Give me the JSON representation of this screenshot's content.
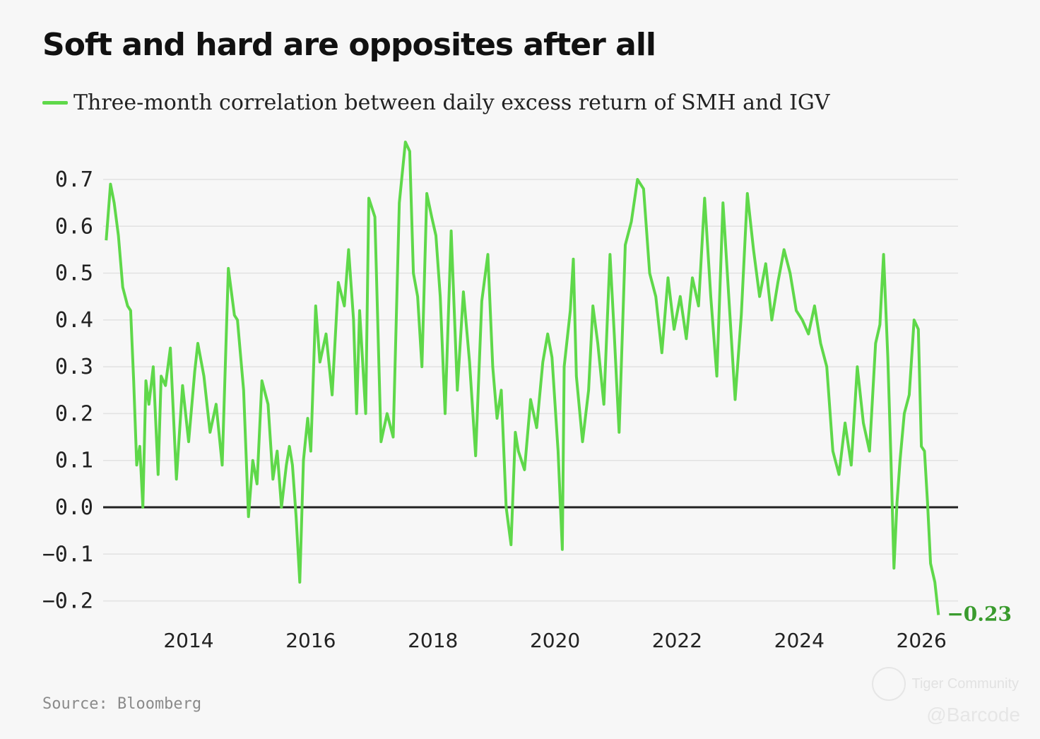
{
  "chart_data": {
    "type": "line",
    "title": "Soft and hard are opposites after all",
    "legend_label": "Three-month correlation between daily excess return of SMH and IGV",
    "series_color": "#5fd84a",
    "zero_line_color": "#222222",
    "xlim": [
      2012.6,
      2026.6
    ],
    "ylim": [
      -0.25,
      0.8
    ],
    "y_ticks": [
      0.7,
      0.6,
      0.5,
      0.4,
      0.3,
      0.2,
      0.1,
      0.0,
      -0.1,
      -0.2
    ],
    "y_tick_labels": [
      "0.7",
      "0.6",
      "0.5",
      "0.4",
      "0.3",
      "0.2",
      "0.1",
      "0.0",
      "−0.1",
      "−0.2"
    ],
    "x_ticks": [
      2014,
      2016,
      2018,
      2020,
      2022,
      2024,
      2026
    ],
    "x_tick_labels": [
      "2014",
      "2016",
      "2018",
      "2020",
      "2022",
      "2024",
      "2026"
    ],
    "end_label": "−0.23",
    "series": [
      {
        "name": "Three-month correlation between daily excess return of SMH and IGV",
        "x": [
          2012.65,
          2012.72,
          2012.78,
          2012.85,
          2012.92,
          2013.0,
          2013.05,
          2013.1,
          2013.15,
          2013.2,
          2013.25,
          2013.3,
          2013.35,
          2013.42,
          2013.5,
          2013.55,
          2013.62,
          2013.7,
          2013.8,
          2013.9,
          2014.0,
          2014.1,
          2014.15,
          2014.25,
          2014.35,
          2014.45,
          2014.55,
          2014.65,
          2014.75,
          2014.8,
          2014.9,
          2014.98,
          2015.05,
          2015.12,
          2015.2,
          2015.3,
          2015.38,
          2015.45,
          2015.52,
          2015.6,
          2015.65,
          2015.7,
          2015.76,
          2015.82,
          2015.88,
          2015.95,
          2016.0,
          2016.08,
          2016.15,
          2016.25,
          2016.35,
          2016.45,
          2016.55,
          2016.62,
          2016.7,
          2016.75,
          2016.8,
          2016.9,
          2016.95,
          2017.05,
          2017.15,
          2017.25,
          2017.35,
          2017.45,
          2017.55,
          2017.62,
          2017.68,
          2017.75,
          2017.82,
          2017.9,
          2017.98,
          2018.05,
          2018.12,
          2018.2,
          2018.3,
          2018.4,
          2018.5,
          2018.6,
          2018.7,
          2018.8,
          2018.9,
          2018.98,
          2019.05,
          2019.12,
          2019.2,
          2019.28,
          2019.35,
          2019.4,
          2019.5,
          2019.6,
          2019.7,
          2019.8,
          2019.88,
          2019.95,
          2020.05,
          2020.12,
          2020.15,
          2020.25,
          2020.3,
          2020.35,
          2020.45,
          2020.55,
          2020.62,
          2020.7,
          2020.8,
          2020.9,
          2020.97,
          2021.05,
          2021.15,
          2021.25,
          2021.35,
          2021.45,
          2021.55,
          2021.65,
          2021.75,
          2021.85,
          2021.95,
          2022.05,
          2022.15,
          2022.25,
          2022.35,
          2022.45,
          2022.55,
          2022.65,
          2022.75,
          2022.85,
          2022.95,
          2023.05,
          2023.15,
          2023.25,
          2023.35,
          2023.45,
          2023.55,
          2023.65,
          2023.75,
          2023.85,
          2023.95,
          2024.05,
          2024.15,
          2024.25,
          2024.35,
          2024.45,
          2024.55,
          2024.65,
          2024.75,
          2024.85,
          2024.95,
          2025.05,
          2025.15,
          2025.25,
          2025.32,
          2025.38,
          2025.45,
          2025.5,
          2025.55,
          2025.6,
          2025.65,
          2025.72,
          2025.8,
          2025.88,
          2025.95,
          2026.0,
          2026.05,
          2026.1,
          2026.15,
          2026.22,
          2026.28
        ],
        "values": [
          0.57,
          0.69,
          0.65,
          0.58,
          0.47,
          0.43,
          0.42,
          0.27,
          0.09,
          0.13,
          0.0,
          0.27,
          0.22,
          0.3,
          0.07,
          0.28,
          0.26,
          0.34,
          0.06,
          0.26,
          0.14,
          0.29,
          0.35,
          0.28,
          0.16,
          0.22,
          0.09,
          0.51,
          0.41,
          0.4,
          0.25,
          -0.02,
          0.1,
          0.05,
          0.27,
          0.22,
          0.06,
          0.12,
          0.0,
          0.09,
          0.13,
          0.09,
          -0.02,
          -0.16,
          0.1,
          0.19,
          0.12,
          0.43,
          0.31,
          0.37,
          0.24,
          0.48,
          0.43,
          0.55,
          0.4,
          0.2,
          0.42,
          0.2,
          0.66,
          0.62,
          0.14,
          0.2,
          0.15,
          0.65,
          0.78,
          0.76,
          0.5,
          0.45,
          0.3,
          0.67,
          0.62,
          0.58,
          0.45,
          0.2,
          0.59,
          0.25,
          0.46,
          0.31,
          0.11,
          0.44,
          0.54,
          0.3,
          0.19,
          0.25,
          0.0,
          -0.08,
          0.16,
          0.12,
          0.08,
          0.23,
          0.17,
          0.31,
          0.37,
          0.32,
          0.12,
          -0.09,
          0.3,
          0.42,
          0.53,
          0.28,
          0.14,
          0.25,
          0.43,
          0.35,
          0.22,
          0.54,
          0.37,
          0.16,
          0.56,
          0.61,
          0.7,
          0.68,
          0.5,
          0.45,
          0.33,
          0.49,
          0.38,
          0.45,
          0.36,
          0.49,
          0.43,
          0.66,
          0.45,
          0.28,
          0.65,
          0.44,
          0.23,
          0.41,
          0.67,
          0.55,
          0.45,
          0.52,
          0.4,
          0.48,
          0.55,
          0.5,
          0.42,
          0.4,
          0.37,
          0.43,
          0.35,
          0.3,
          0.12,
          0.07,
          0.18,
          0.09,
          0.3,
          0.18,
          0.12,
          0.35,
          0.39,
          0.54,
          0.32,
          0.11,
          -0.13,
          0.01,
          0.1,
          0.2,
          0.24,
          0.4,
          0.38,
          0.13,
          0.12,
          0.01,
          -0.12,
          -0.16,
          -0.23
        ]
      }
    ]
  }
}
